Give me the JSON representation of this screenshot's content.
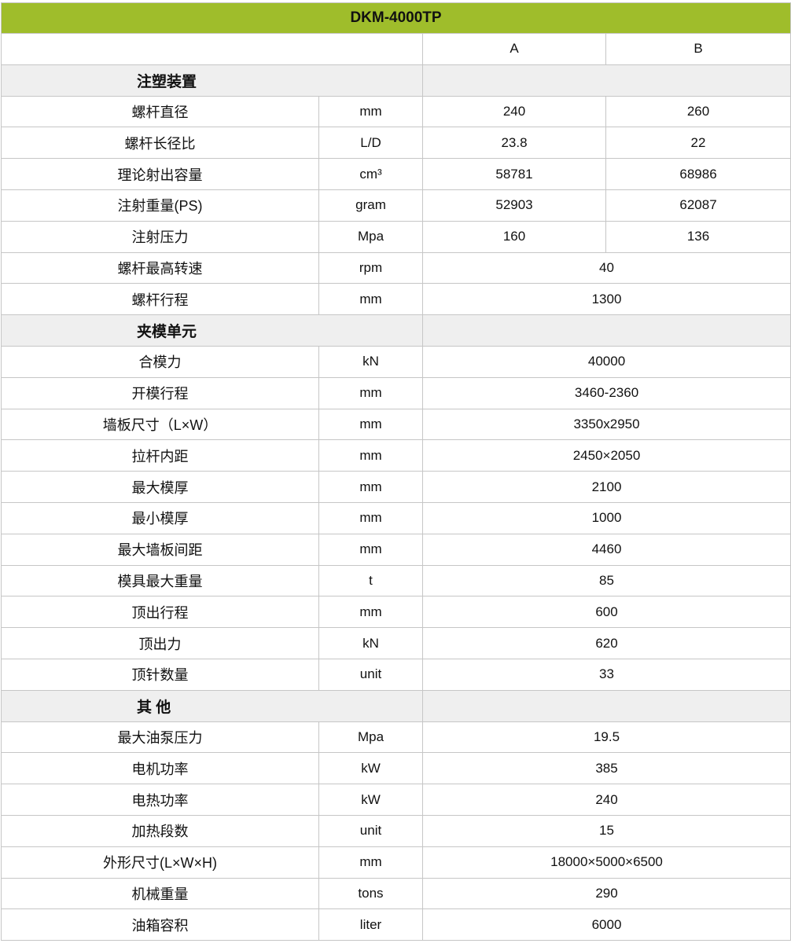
{
  "title": "DKM-4000TP",
  "columns": {
    "a": "A",
    "b": "B"
  },
  "accent_color": "#9fbd2b",
  "sections": [
    {
      "label": "注塑装置",
      "rows": [
        {
          "name": "螺杆直径",
          "unit": "mm",
          "a": "240",
          "b": "260"
        },
        {
          "name": "螺杆长径比",
          "unit": "L/D",
          "a": "23.8",
          "b": "22"
        },
        {
          "name": "理论射出容量",
          "unit": "cm³",
          "a": "58781",
          "b": "68986"
        },
        {
          "name": "注射重量(PS)",
          "unit": "gram",
          "a": "52903",
          "b": "62087"
        },
        {
          "name": "注射压力",
          "unit": "Mpa",
          "a": "160",
          "b": "136"
        },
        {
          "name": "螺杆最高转速",
          "unit": "rpm",
          "value": "40"
        },
        {
          "name": "螺杆行程",
          "unit": "mm",
          "value": "1300"
        }
      ]
    },
    {
      "label": "夹模单元",
      "rows": [
        {
          "name": "合模力",
          "unit": "kN",
          "value": "40000"
        },
        {
          "name": "开模行程",
          "unit": "mm",
          "value": "3460-2360"
        },
        {
          "name": "墙板尺寸（L×W）",
          "unit": "mm",
          "value": "3350x2950"
        },
        {
          "name": "拉杆内距",
          "unit": "mm",
          "value": "2450×2050"
        },
        {
          "name": "最大模厚",
          "unit": "mm",
          "value": "2100"
        },
        {
          "name": "最小模厚",
          "unit": "mm",
          "value": "1000"
        },
        {
          "name": "最大墙板间距",
          "unit": "mm",
          "value": "4460"
        },
        {
          "name": "模具最大重量",
          "unit": "t",
          "value": "85"
        },
        {
          "name": "顶出行程",
          "unit": "mm",
          "value": "600"
        },
        {
          "name": "顶出力",
          "unit": "kN",
          "value": "620"
        },
        {
          "name": "顶针数量",
          "unit": "unit",
          "value": "33"
        }
      ]
    },
    {
      "label": "其  他",
      "rows": [
        {
          "name": "最大油泵压力",
          "unit": "Mpa",
          "value": "19.5"
        },
        {
          "name": "电机功率",
          "unit": "kW",
          "value": "385"
        },
        {
          "name": "电热功率",
          "unit": "kW",
          "value": "240"
        },
        {
          "name": "加热段数",
          "unit": "unit",
          "value": "15"
        },
        {
          "name": "外形尺寸(L×W×H)",
          "unit": "mm",
          "value": "18000×5000×6500"
        },
        {
          "name": "机械重量",
          "unit": "tons",
          "value": "290"
        },
        {
          "name": "油箱容积",
          "unit": "liter",
          "value": "6000"
        }
      ]
    }
  ]
}
